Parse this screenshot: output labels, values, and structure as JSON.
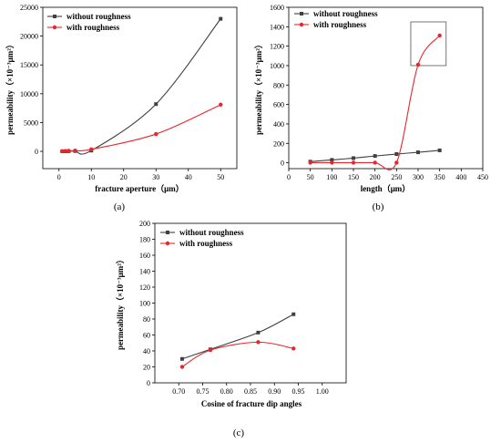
{
  "colors": {
    "without": "#404040",
    "with": "#e8262d",
    "axis": "#000000"
  },
  "chart_data": [
    {
      "type": "line",
      "panel_label": "(a)",
      "xlabel": "fracture aperture（μm）",
      "ylabel": "permeability（×10⁻³μm²）",
      "xlim": [
        -5,
        55
      ],
      "ylim": [
        -3000,
        25000
      ],
      "xticks": [
        0,
        10,
        20,
        30,
        40,
        50
      ],
      "yticks": [
        0,
        5000,
        10000,
        15000,
        20000,
        25000
      ],
      "legend_position": "top-left",
      "series": [
        {
          "name": "without roughness",
          "marker": "square",
          "x": [
            1,
            2,
            3,
            5,
            10,
            30,
            50
          ],
          "y": [
            5,
            10,
            20,
            50,
            130,
            8200,
            23000
          ]
        },
        {
          "name": "with roughness",
          "marker": "circle",
          "x": [
            1,
            2,
            3,
            5,
            10,
            30,
            50
          ],
          "y": [
            40,
            60,
            90,
            140,
            350,
            3000,
            8100
          ]
        }
      ]
    },
    {
      "type": "line",
      "panel_label": "(b)",
      "xlabel": "length（μm）",
      "ylabel": "permeability（×10⁻³μm²）",
      "xlim": [
        0,
        450
      ],
      "ylim": [
        -60,
        1600
      ],
      "xticks": [
        0,
        50,
        100,
        150,
        200,
        250,
        300,
        350,
        400,
        450
      ],
      "yticks": [
        0,
        200,
        400,
        600,
        800,
        1000,
        1200,
        1400,
        1600
      ],
      "legend_position": "top-left",
      "highlight_box": {
        "x": [
          283,
          365
        ],
        "y": [
          1000,
          1450
        ]
      },
      "series": [
        {
          "name": "without roughness",
          "marker": "square",
          "x": [
            50,
            100,
            150,
            200,
            250,
            300,
            350
          ],
          "y": [
            12,
            30,
            48,
            70,
            90,
            108,
            128
          ]
        },
        {
          "name": "with roughness",
          "marker": "circle",
          "x": [
            50,
            100,
            150,
            200,
            250,
            300,
            350
          ],
          "y": [
            2,
            2,
            2,
            2,
            2,
            1010,
            1310
          ]
        }
      ]
    },
    {
      "type": "line",
      "panel_label": "(c)",
      "xlabel": "Cosine of fracture dip angles",
      "ylabel": "permeability（×10⁻³μm²）",
      "xlim": [
        0.65,
        1.05
      ],
      "ylim": [
        0,
        200
      ],
      "xticks": [
        0.7,
        0.75,
        0.8,
        0.85,
        0.9,
        0.95,
        1.0
      ],
      "yticks": [
        0,
        20,
        40,
        60,
        80,
        100,
        120,
        140,
        160,
        180,
        200
      ],
      "legend_position": "top-left",
      "series": [
        {
          "name": "without roughness",
          "marker": "square",
          "x": [
            0.707,
            0.766,
            0.866,
            0.94
          ],
          "y": [
            30,
            42,
            63,
            86
          ]
        },
        {
          "name": "with roughness",
          "marker": "circle",
          "x": [
            0.707,
            0.766,
            0.866,
            0.94
          ],
          "y": [
            20,
            41,
            51,
            43
          ]
        }
      ]
    }
  ]
}
